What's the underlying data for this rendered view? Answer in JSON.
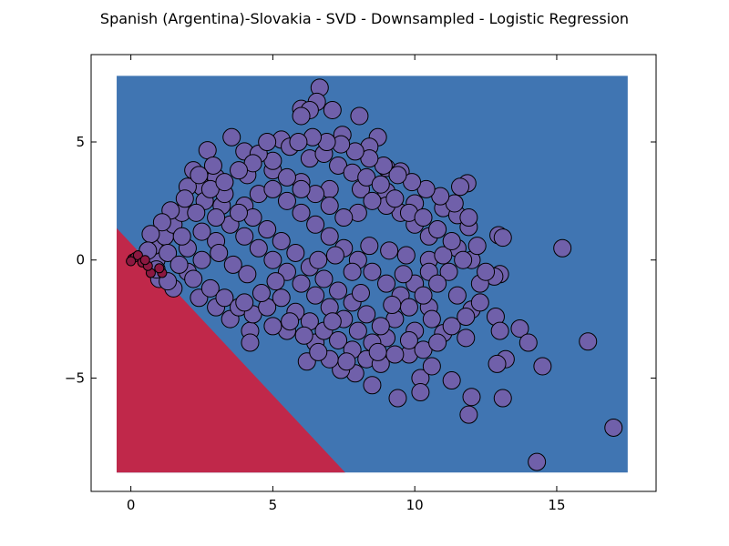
{
  "chart_data": {
    "type": "scatter",
    "title": "Spanish (Argentina)-Slovakia - SVD - Downsampled - Logistic Regression",
    "xlabel": "",
    "ylabel": "",
    "xlim": [
      -1.4,
      18.5
    ],
    "ylim": [
      -9.8,
      8.7
    ],
    "x_ticks": [
      0,
      5,
      10,
      15
    ],
    "y_ticks": [
      -5,
      0,
      5
    ],
    "x_tick_labels": [
      "0",
      "5",
      "10",
      "15"
    ],
    "y_tick_labels": [
      "−5",
      "0",
      "5"
    ],
    "grid": false,
    "legend": "none",
    "decision_regions": {
      "extent": {
        "x": [
          -0.5,
          17.5
        ],
        "y": [
          -9.0,
          7.8
        ]
      },
      "boundary_line": {
        "x1": -0.5,
        "y1": 1.35,
        "x2": 7.55,
        "y2": -9.0
      },
      "colors": {
        "class_a": "#4075b2",
        "class_b": "#c0284a"
      }
    },
    "series": [
      {
        "color": "#7060aa",
        "points": [
          [
            6.65,
            7.3
          ],
          [
            6.55,
            6.7
          ],
          [
            6.0,
            6.4
          ],
          [
            6.3,
            6.35
          ],
          [
            6.0,
            6.1
          ],
          [
            7.1,
            6.35
          ],
          [
            8.05,
            6.1
          ],
          [
            3.55,
            5.2
          ],
          [
            2.7,
            4.65
          ],
          [
            5.3,
            5.1
          ],
          [
            7.45,
            5.3
          ],
          [
            8.7,
            5.2
          ],
          [
            8.4,
            4.8
          ],
          [
            4.0,
            4.6
          ],
          [
            9.0,
            3.9
          ],
          [
            9.5,
            3.75
          ],
          [
            11.85,
            3.25
          ],
          [
            11.6,
            3.1
          ],
          [
            2.2,
            3.8
          ],
          [
            3.0,
            3.5
          ],
          [
            2.5,
            3.1
          ],
          [
            2.0,
            3.1
          ],
          [
            4.1,
            3.6
          ],
          [
            5.0,
            3.8
          ],
          [
            6.0,
            3.3
          ],
          [
            7.0,
            3.0
          ],
          [
            8.1,
            3.0
          ],
          [
            9.0,
            2.9
          ],
          [
            10.0,
            2.4
          ],
          [
            11.0,
            2.2
          ],
          [
            11.5,
            1.9
          ],
          [
            11.9,
            1.4
          ],
          [
            12.95,
            1.05
          ],
          [
            13.1,
            0.95
          ],
          [
            15.2,
            0.5
          ],
          [
            12.0,
            0.0
          ],
          [
            11.5,
            0.5
          ],
          [
            10.5,
            0.0
          ],
          [
            9.7,
            0.2
          ],
          [
            13.0,
            -0.6
          ],
          [
            12.8,
            -0.7
          ],
          [
            12.3,
            -1.0
          ],
          [
            11.5,
            -1.5
          ],
          [
            10.5,
            -2.0
          ],
          [
            12.0,
            -2.1
          ],
          [
            12.85,
            -2.4
          ],
          [
            13.0,
            -3.0
          ],
          [
            13.7,
            -2.9
          ],
          [
            14.0,
            -3.5
          ],
          [
            13.2,
            -4.2
          ],
          [
            12.9,
            -4.4
          ],
          [
            13.1,
            -5.85
          ],
          [
            12.0,
            -5.8
          ],
          [
            11.9,
            -6.55
          ],
          [
            11.3,
            -5.1
          ],
          [
            10.2,
            -5.0
          ],
          [
            10.2,
            -5.6
          ],
          [
            9.4,
            -5.85
          ],
          [
            8.5,
            -5.3
          ],
          [
            7.9,
            -4.8
          ],
          [
            7.4,
            -4.65
          ],
          [
            7.0,
            -4.2
          ],
          [
            6.2,
            -4.3
          ],
          [
            6.5,
            -3.5
          ],
          [
            5.5,
            -3.0
          ],
          [
            5.0,
            -2.8
          ],
          [
            4.2,
            -3.0
          ],
          [
            4.2,
            -3.5
          ],
          [
            3.5,
            -2.5
          ],
          [
            3.0,
            -2.0
          ],
          [
            2.4,
            -1.6
          ],
          [
            1.5,
            -1.2
          ],
          [
            1.0,
            -0.8
          ],
          [
            0.9,
            0.0
          ],
          [
            0.8,
            0.6
          ],
          [
            1.2,
            1.0
          ],
          [
            1.5,
            1.5
          ],
          [
            1.8,
            2.0
          ],
          [
            2.6,
            2.5
          ],
          [
            3.2,
            2.3
          ],
          [
            17.0,
            -7.1
          ],
          [
            16.1,
            -3.45
          ],
          [
            14.5,
            -4.5
          ],
          [
            14.3,
            -8.55
          ],
          [
            9.8,
            -4.0
          ],
          [
            10.6,
            -4.5
          ],
          [
            11.8,
            -3.3
          ],
          [
            11.0,
            -3.1
          ],
          [
            10.0,
            -3.0
          ],
          [
            9.0,
            -3.3
          ],
          [
            8.5,
            -3.5
          ],
          [
            8.0,
            -3.0
          ],
          [
            7.5,
            -2.5
          ],
          [
            7.0,
            -2.0
          ],
          [
            6.5,
            -1.5
          ],
          [
            6.0,
            -1.0
          ],
          [
            5.5,
            -0.5
          ],
          [
            5.0,
            0.0
          ],
          [
            4.5,
            0.5
          ],
          [
            4.0,
            1.0
          ],
          [
            3.5,
            1.5
          ],
          [
            3.0,
            0.8
          ],
          [
            2.5,
            0.0
          ],
          [
            2.0,
            -0.5
          ],
          [
            2.0,
            0.5
          ],
          [
            2.5,
            1.2
          ],
          [
            3.0,
            1.8
          ],
          [
            4.0,
            2.3
          ],
          [
            4.5,
            2.8
          ],
          [
            5.0,
            3.0
          ],
          [
            5.5,
            2.5
          ],
          [
            6.0,
            2.0
          ],
          [
            6.5,
            1.5
          ],
          [
            7.0,
            1.0
          ],
          [
            7.5,
            0.5
          ],
          [
            8.0,
            0.0
          ],
          [
            8.5,
            -0.5
          ],
          [
            9.0,
            -1.0
          ],
          [
            9.5,
            -1.5
          ],
          [
            10.0,
            -1.0
          ],
          [
            10.5,
            -0.5
          ],
          [
            11.0,
            0.2
          ],
          [
            10.5,
            1.0
          ],
          [
            10.0,
            1.5
          ],
          [
            9.5,
            2.0
          ],
          [
            9.0,
            2.3
          ],
          [
            8.5,
            2.5
          ],
          [
            8.0,
            2.0
          ],
          [
            7.5,
            1.8
          ],
          [
            7.0,
            2.3
          ],
          [
            6.5,
            2.8
          ],
          [
            6.0,
            3.0
          ],
          [
            5.5,
            3.5
          ],
          [
            5.0,
            4.2
          ],
          [
            4.5,
            4.5
          ],
          [
            5.6,
            4.8
          ],
          [
            6.3,
            4.3
          ],
          [
            6.8,
            4.5
          ],
          [
            7.3,
            4.0
          ],
          [
            7.8,
            3.7
          ],
          [
            8.3,
            3.5
          ],
          [
            8.8,
            3.2
          ],
          [
            9.3,
            2.6
          ],
          [
            9.8,
            2.0
          ],
          [
            10.3,
            1.8
          ],
          [
            10.8,
            1.3
          ],
          [
            11.3,
            0.8
          ],
          [
            11.7,
            0.0
          ],
          [
            11.2,
            -0.5
          ],
          [
            10.8,
            -1.0
          ],
          [
            10.3,
            -1.5
          ],
          [
            9.8,
            -2.0
          ],
          [
            9.3,
            -2.5
          ],
          [
            8.8,
            -2.8
          ],
          [
            8.3,
            -2.3
          ],
          [
            7.8,
            -1.8
          ],
          [
            7.3,
            -1.3
          ],
          [
            6.8,
            -0.8
          ],
          [
            6.3,
            -0.3
          ],
          [
            5.8,
            0.3
          ],
          [
            5.3,
            0.8
          ],
          [
            4.8,
            1.3
          ],
          [
            4.3,
            1.8
          ],
          [
            3.8,
            2.0
          ],
          [
            3.3,
            2.8
          ],
          [
            2.8,
            3.0
          ],
          [
            2.3,
            2.0
          ],
          [
            1.8,
            1.0
          ],
          [
            1.3,
            0.3
          ],
          [
            1.7,
            -0.2
          ],
          [
            2.2,
            -0.8
          ],
          [
            2.8,
            -1.2
          ],
          [
            3.3,
            -1.6
          ],
          [
            3.8,
            -2.0
          ],
          [
            4.3,
            -2.3
          ],
          [
            4.8,
            -2.0
          ],
          [
            5.3,
            -1.6
          ],
          [
            5.8,
            -2.2
          ],
          [
            6.3,
            -2.6
          ],
          [
            6.8,
            -3.0
          ],
          [
            7.3,
            -3.4
          ],
          [
            7.8,
            -3.8
          ],
          [
            8.3,
            -4.2
          ],
          [
            8.8,
            -4.4
          ],
          [
            9.3,
            -4.0
          ],
          [
            9.8,
            -3.4
          ],
          [
            10.3,
            -3.8
          ],
          [
            10.8,
            -3.5
          ],
          [
            11.3,
            -2.8
          ],
          [
            11.8,
            -2.4
          ],
          [
            12.3,
            -1.8
          ],
          [
            12.5,
            -0.5
          ],
          [
            12.2,
            0.6
          ],
          [
            11.9,
            1.8
          ],
          [
            11.4,
            2.4
          ],
          [
            10.9,
            2.7
          ],
          [
            10.4,
            3.0
          ],
          [
            9.9,
            3.3
          ],
          [
            9.4,
            3.6
          ],
          [
            8.9,
            4.0
          ],
          [
            8.4,
            4.3
          ],
          [
            7.9,
            4.6
          ],
          [
            7.4,
            4.9
          ],
          [
            6.9,
            5.0
          ],
          [
            6.4,
            5.2
          ],
          [
            5.9,
            5.0
          ],
          [
            4.8,
            5.0
          ],
          [
            4.3,
            4.1
          ],
          [
            3.8,
            3.8
          ],
          [
            3.3,
            3.3
          ],
          [
            2.9,
            4.0
          ],
          [
            2.4,
            3.6
          ],
          [
            1.9,
            2.6
          ],
          [
            1.4,
            2.1
          ],
          [
            1.1,
            1.6
          ],
          [
            0.7,
            1.1
          ],
          [
            0.6,
            0.4
          ],
          [
            0.9,
            -0.4
          ],
          [
            1.3,
            -0.9
          ],
          [
            6.6,
            0.0
          ],
          [
            7.2,
            0.2
          ],
          [
            7.8,
            -0.5
          ],
          [
            8.4,
            0.6
          ],
          [
            9.1,
            0.4
          ],
          [
            9.6,
            -0.6
          ],
          [
            5.1,
            -0.9
          ],
          [
            4.6,
            -1.4
          ],
          [
            4.1,
            -0.6
          ],
          [
            3.6,
            -0.2
          ],
          [
            3.1,
            0.3
          ],
          [
            4.0,
            -1.8
          ],
          [
            5.6,
            -2.6
          ],
          [
            6.1,
            -3.2
          ],
          [
            7.1,
            -2.6
          ],
          [
            8.1,
            -1.4
          ],
          [
            9.2,
            -1.9
          ],
          [
            8.7,
            -3.9
          ],
          [
            7.6,
            -4.3
          ],
          [
            6.6,
            -3.9
          ],
          [
            10.6,
            -2.5
          ]
        ]
      },
      {
        "color": "#8c1840",
        "points": [
          [
            0.05,
            0.05
          ],
          [
            0.15,
            0.12
          ],
          [
            0.25,
            0.2
          ],
          [
            0.0,
            -0.05
          ],
          [
            0.4,
            -0.1
          ],
          [
            0.7,
            -0.55
          ],
          [
            0.6,
            -0.25
          ],
          [
            1.1,
            -0.55
          ],
          [
            1.0,
            -0.35
          ],
          [
            0.5,
            0.0
          ]
        ]
      }
    ]
  }
}
